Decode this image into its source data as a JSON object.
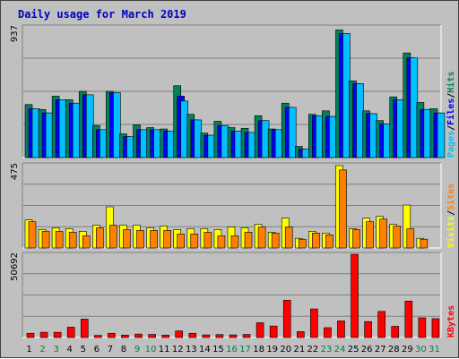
{
  "chart_data": {
    "type": "bar",
    "title": "Daily usage for March 2019",
    "categories": [
      "1",
      "2",
      "3",
      "4",
      "5",
      "6",
      "7",
      "8",
      "9",
      "10",
      "11",
      "12",
      "13",
      "14",
      "15",
      "16",
      "17",
      "18",
      "19",
      "20",
      "21",
      "22",
      "23",
      "24",
      "25",
      "26",
      "27",
      "28",
      "29",
      "30",
      "31"
    ],
    "weekend_days": [
      "2",
      "3",
      "9",
      "10",
      "16",
      "17",
      "23",
      "24",
      "30",
      "31"
    ],
    "panels": [
      {
        "name": "pages-files-hits",
        "max_label": "937",
        "ylim": [
          0,
          937
        ],
        "legend": [
          {
            "text": "Pages",
            "color": "#00c0ff"
          },
          {
            "text": "/",
            "color": "#000000"
          },
          {
            "text": "Files",
            "color": "#0000ff"
          },
          {
            "text": "/",
            "color": "#000000"
          },
          {
            "text": "Hits",
            "color": "#008060"
          }
        ],
        "series": [
          {
            "name": "Hits",
            "color": "#00805c",
            "values": [
              380,
              345,
              440,
              415,
              475,
              230,
              475,
              170,
              235,
              215,
              205,
              515,
              310,
              175,
              260,
              215,
              210,
              300,
              205,
              390,
              80,
              310,
              335,
              915,
              550,
              335,
              265,
              435,
              750,
              395,
              350
            ]
          },
          {
            "name": "Files",
            "color": "#0000ff",
            "values": [
              350,
              320,
              415,
              390,
              450,
              200,
              465,
              150,
              200,
              200,
              190,
              440,
              270,
              160,
              230,
              190,
              180,
              265,
              200,
              360,
              60,
              300,
              295,
              890,
              530,
              315,
              240,
              415,
              715,
              345,
              320
            ]
          },
          {
            "name": "Pages",
            "color": "#00c0ff",
            "values": [
              350,
              320,
              415,
              390,
              450,
              200,
              465,
              150,
              200,
              200,
              190,
              405,
              270,
              160,
              230,
              190,
              180,
              265,
              200,
              360,
              60,
              300,
              295,
              890,
              530,
              315,
              240,
              415,
              715,
              345,
              320
            ]
          }
        ]
      },
      {
        "name": "visits-sites",
        "max_label": "475",
        "ylim": [
          0,
          475
        ],
        "legend": [
          {
            "text": "Visits",
            "color": "#ffff00"
          },
          {
            "text": "/",
            "color": "#000000"
          },
          {
            "text": "Sites",
            "color": "#ff8000"
          }
        ],
        "series": [
          {
            "name": "Visits",
            "color": "#ffff00",
            "values": [
              160,
              105,
              115,
              110,
              95,
              130,
              235,
              130,
              130,
              115,
              125,
              105,
              110,
              110,
              105,
              120,
              115,
              135,
              90,
              170,
              55,
              95,
              85,
              470,
              110,
              170,
              180,
              135,
              245,
              55,
              0
            ]
          },
          {
            "name": "Sites",
            "color": "#ff8000",
            "values": [
              150,
              95,
              95,
              90,
              70,
              115,
              130,
              105,
              100,
              100,
              100,
              80,
              80,
              90,
              70,
              70,
              90,
              120,
              85,
              120,
              50,
              85,
              75,
              445,
              105,
              150,
              165,
              125,
              110,
              50,
              0
            ]
          }
        ]
      },
      {
        "name": "kbytes",
        "max_label": "50692",
        "ylim": [
          0,
          50692
        ],
        "legend": [
          {
            "text": "KBytes",
            "color": "#ff0000"
          }
        ],
        "series": [
          {
            "name": "KBytes",
            "color": "#ff0000",
            "values": [
              2600,
              3200,
              3200,
              6300,
              11200,
              1300,
              2600,
              1500,
              2100,
              1900,
              1500,
              4000,
              2600,
              1600,
              1800,
              1600,
              1900,
              9000,
              7000,
              22700,
              3600,
              17400,
              6000,
              10100,
              50692,
              9700,
              15900,
              6800,
              22200,
              12000,
              11500
            ]
          }
        ]
      }
    ]
  }
}
